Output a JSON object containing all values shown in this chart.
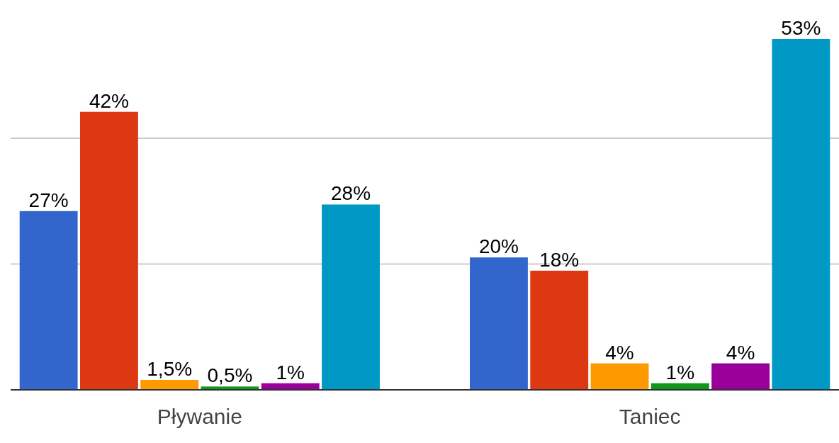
{
  "chart_data": {
    "type": "bar",
    "categories": [
      "Pływanie",
      "Taniec"
    ],
    "series": [
      {
        "color": "#3366cc",
        "values": [
          27,
          20
        ],
        "value_labels": [
          "27%",
          "20%"
        ]
      },
      {
        "color": "#dc3912",
        "values": [
          42,
          18
        ],
        "value_labels": [
          "42%",
          "18%"
        ]
      },
      {
        "color": "#ff9900",
        "values": [
          1.5,
          4
        ],
        "value_labels": [
          "1,5%",
          "4%"
        ]
      },
      {
        "color": "#109618",
        "values": [
          0.5,
          1
        ],
        "value_labels": [
          "0,5%",
          "1%"
        ]
      },
      {
        "color": "#990099",
        "values": [
          1,
          4
        ],
        "value_labels": [
          "1%",
          "4%"
        ]
      },
      {
        "color": "#0099c6",
        "values": [
          28,
          53
        ],
        "value_labels": [
          "28%",
          "53%"
        ]
      }
    ],
    "ref_lines": [
      {
        "axis": "y",
        "value": 19,
        "color": "#cccccc"
      },
      {
        "axis": "y",
        "value": 38,
        "color": "#cccccc"
      }
    ],
    "tick_labels": "x"
  }
}
